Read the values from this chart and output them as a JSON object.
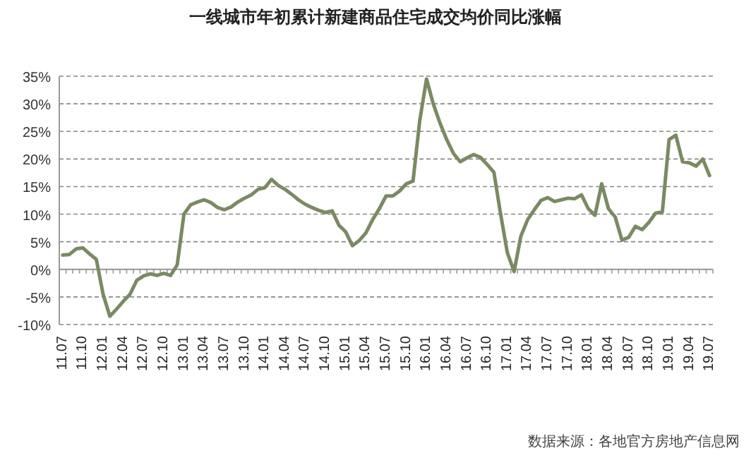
{
  "chart_data": {
    "type": "line",
    "title": "一线城市年初累计新建商品住宅成交均价同比涨幅",
    "categories": [
      "11.07",
      null,
      null,
      "11.10",
      null,
      null,
      "12.01",
      null,
      null,
      "12.04",
      null,
      null,
      "12.07",
      null,
      null,
      "12.10",
      null,
      null,
      "13.01",
      null,
      null,
      "13.04",
      null,
      null,
      "13.07",
      null,
      null,
      "13.10",
      null,
      null,
      "14.01",
      null,
      null,
      "14.04",
      null,
      null,
      "14.07",
      null,
      null,
      "14.10",
      null,
      null,
      "15.01",
      null,
      null,
      "15.04",
      null,
      null,
      "15.07",
      null,
      null,
      "15.10",
      null,
      null,
      "16.01",
      null,
      null,
      "16.04",
      null,
      null,
      "16.07",
      null,
      null,
      "16.10",
      null,
      null,
      "17.01",
      null,
      null,
      "17.04",
      null,
      null,
      "17.07",
      null,
      null,
      "17.10",
      null,
      null,
      "18.01",
      null,
      null,
      "18.04",
      null,
      null,
      "18.07",
      null,
      null,
      "18.10",
      null,
      null,
      "19.01",
      null,
      null,
      "19.04",
      null,
      null,
      "19.07"
    ],
    "series": [
      {
        "color": "#7a8a62",
        "values": [
          2.6,
          2.7,
          3.7,
          3.9,
          2.8,
          1.8,
          -4.5,
          -8.5,
          -7.2,
          -5.8,
          -4.5,
          -2,
          -1.2,
          -0.8,
          -1.1,
          -0.7,
          -1.1,
          0.8,
          10,
          11.7,
          12.2,
          12.6,
          12.1,
          11.2,
          10.8,
          11.3,
          12.2,
          12.9,
          13.5,
          14.5,
          14.8,
          16.3,
          15.2,
          14.5,
          13.6,
          12.6,
          11.8,
          11.2,
          10.7,
          10.3,
          10.6,
          8,
          6.8,
          4.3,
          5.2,
          6.6,
          9,
          11,
          13.3,
          13.3,
          14.2,
          15.5,
          16,
          27,
          34.5,
          30,
          26.5,
          23.5,
          21,
          19.5,
          20.2,
          20.8,
          20.3,
          19,
          17.6,
          10,
          3,
          -0.4,
          6,
          9,
          10.8,
          12.5,
          13,
          12.3,
          12.6,
          12.9,
          12.8,
          13.5,
          11,
          9.8,
          15.5,
          11,
          9.5,
          5.3,
          5.8,
          7.8,
          7.2,
          8.5,
          10.2,
          10.4,
          23.5,
          24.3,
          19.5,
          19.3,
          18.7,
          20,
          17
        ]
      }
    ],
    "ylim": [
      -10,
      35
    ],
    "yticks": [
      {
        "value": -10,
        "label": "-10%"
      },
      {
        "value": -5,
        "label": "-5%"
      },
      {
        "value": 0,
        "label": "0%"
      },
      {
        "value": 5,
        "label": "5%"
      },
      {
        "value": 10,
        "label": "10%"
      },
      {
        "value": 15,
        "label": "15%"
      },
      {
        "value": 20,
        "label": "20%"
      },
      {
        "value": 25,
        "label": "25%"
      },
      {
        "value": 30,
        "label": "30%"
      },
      {
        "value": 35,
        "label": "35%"
      }
    ],
    "grid": "y",
    "annotations": [
      "数据来源：各地官方房地产信息网"
    ]
  }
}
